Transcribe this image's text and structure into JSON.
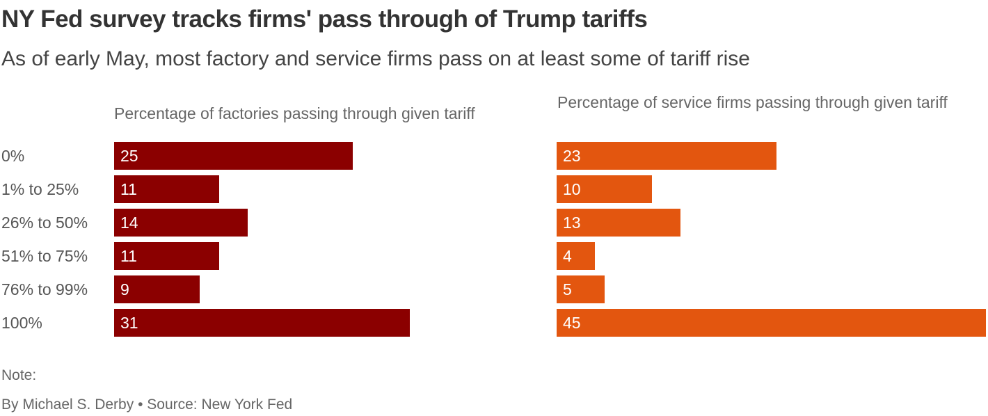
{
  "title": "NY Fed survey tracks firms' pass through of Trump tariffs",
  "subtitle": "As of early May, most factory and service firms pass on at least some of tariff rise",
  "note": "Note:",
  "byline": "By Michael S. Derby • Source: New York Fed",
  "chart_data": [
    {
      "type": "bar",
      "orientation": "horizontal",
      "title": "Percentage of factories passing through given tariff",
      "categories": [
        "0%",
        "1% to 25%",
        "26% to 50%",
        "51% to 75%",
        "76% to 99%",
        "100%"
      ],
      "values": [
        25,
        11,
        14,
        11,
        9,
        31
      ],
      "color": "#8b0000",
      "xlim": [
        0,
        45
      ]
    },
    {
      "type": "bar",
      "orientation": "horizontal",
      "title": "Percentage of service firms passing through given tariff",
      "categories": [
        "0%",
        "1% to 25%",
        "26% to 50%",
        "51% to 75%",
        "76% to 99%",
        "100%"
      ],
      "values": [
        23,
        10,
        13,
        4,
        5,
        45
      ],
      "color": "#e3560f",
      "xlim": [
        0,
        45
      ]
    }
  ]
}
